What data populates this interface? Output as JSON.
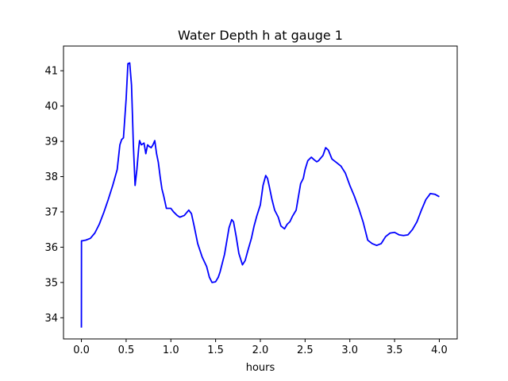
{
  "chart_data": {
    "type": "line",
    "title": "Water Depth h at gauge 1",
    "xlabel": "hours",
    "ylabel": "",
    "xlim": [
      -0.2,
      4.2
    ],
    "ylim": [
      33.4,
      41.7
    ],
    "grid": false,
    "x_ticks": [
      0.0,
      0.5,
      1.0,
      1.5,
      2.0,
      2.5,
      3.0,
      3.5,
      4.0
    ],
    "x_tick_labels": [
      "0.0",
      "0.5",
      "1.0",
      "1.5",
      "2.0",
      "2.5",
      "3.0",
      "3.5",
      "4.0"
    ],
    "y_ticks": [
      34,
      35,
      36,
      37,
      38,
      39,
      40,
      41
    ],
    "y_tick_labels": [
      "34",
      "35",
      "36",
      "37",
      "38",
      "39",
      "40",
      "41"
    ],
    "series": [
      {
        "color": "#0000ff",
        "x": [
          0.0,
          0.001,
          0.01,
          0.05,
          0.1,
          0.15,
          0.2,
          0.25,
          0.3,
          0.35,
          0.4,
          0.43,
          0.45,
          0.47,
          0.5,
          0.52,
          0.54,
          0.56,
          0.57,
          0.58,
          0.6,
          0.62,
          0.64,
          0.65,
          0.67,
          0.7,
          0.72,
          0.74,
          0.76,
          0.78,
          0.8,
          0.82,
          0.84,
          0.86,
          0.88,
          0.9,
          0.92,
          0.95,
          1.0,
          1.03,
          1.07,
          1.1,
          1.15,
          1.2,
          1.23,
          1.26,
          1.3,
          1.35,
          1.4,
          1.43,
          1.46,
          1.5,
          1.53,
          1.55,
          1.6,
          1.65,
          1.68,
          1.7,
          1.73,
          1.76,
          1.8,
          1.83,
          1.86,
          1.9,
          1.93,
          1.96,
          2.0,
          2.03,
          2.06,
          2.08,
          2.1,
          2.13,
          2.16,
          2.2,
          2.23,
          2.27,
          2.3,
          2.33,
          2.36,
          2.4,
          2.45,
          2.48,
          2.5,
          2.53,
          2.57,
          2.6,
          2.63,
          2.65,
          2.7,
          2.73,
          2.76,
          2.8,
          2.85,
          2.9,
          2.95,
          3.0,
          3.05,
          3.1,
          3.15,
          3.2,
          3.25,
          3.3,
          3.35,
          3.4,
          3.45,
          3.5,
          3.55,
          3.6,
          3.65,
          3.7,
          3.75,
          3.8,
          3.85,
          3.88,
          3.9,
          3.95,
          4.0
        ],
        "y": [
          33.72,
          36.18,
          36.18,
          36.2,
          36.25,
          36.4,
          36.65,
          36.98,
          37.35,
          37.75,
          38.2,
          38.9,
          39.05,
          39.1,
          40.2,
          41.2,
          41.22,
          40.6,
          39.8,
          38.95,
          37.75,
          38.2,
          38.8,
          39.02,
          38.9,
          38.95,
          38.65,
          38.9,
          38.85,
          38.82,
          38.9,
          39.02,
          38.65,
          38.4,
          38.0,
          37.65,
          37.45,
          37.1,
          37.1,
          37.0,
          36.9,
          36.85,
          36.9,
          37.05,
          36.95,
          36.6,
          36.1,
          35.72,
          35.45,
          35.15,
          35.0,
          35.02,
          35.15,
          35.3,
          35.8,
          36.55,
          36.78,
          36.72,
          36.3,
          35.82,
          35.5,
          35.62,
          35.9,
          36.25,
          36.6,
          36.88,
          37.2,
          37.75,
          38.03,
          37.95,
          37.72,
          37.35,
          37.05,
          36.85,
          36.6,
          36.52,
          36.65,
          36.72,
          36.88,
          37.05,
          37.8,
          37.95,
          38.2,
          38.45,
          38.55,
          38.48,
          38.42,
          38.45,
          38.6,
          38.82,
          38.75,
          38.5,
          38.4,
          38.3,
          38.1,
          37.75,
          37.45,
          37.1,
          36.7,
          36.2,
          36.1,
          36.05,
          36.1,
          36.3,
          36.4,
          36.42,
          36.35,
          36.33,
          36.35,
          36.5,
          36.72,
          37.05,
          37.35,
          37.45,
          37.52,
          37.5,
          37.43
        ]
      }
    ]
  }
}
